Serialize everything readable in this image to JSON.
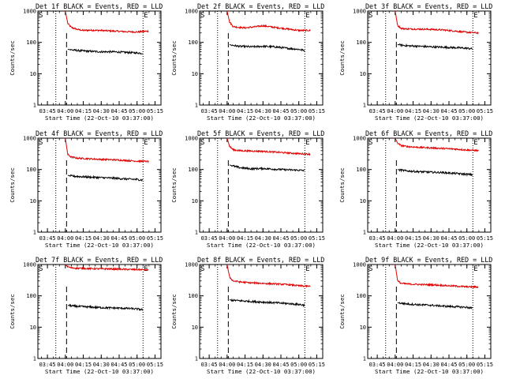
{
  "figure": {
    "panel_titles": [
      "Det 1f BLACK = Events, RED = LLD",
      "Det 2f BLACK = Events, RED = LLD",
      "Det 3f BLACK = Events, RED = LLD",
      "Det 4f BLACK = Events, RED = LLD",
      "Det 5f BLACK = Events, RED = LLD",
      "Det 6f BLACK = Events, RED = LLD",
      "Det 7f BLACK = Events, RED = LLD",
      "Det 8f BLACK = Events, RED = LLD",
      "Det 9f BLACK = Events, RED = LLD"
    ],
    "xlabel": "Start Time (22-Oct-10 03:37:00)",
    "ylabel": "Counts/sec",
    "start_marker": "S",
    "end_marker": "E",
    "colors": {
      "events": "#000000",
      "lld": "#e00000",
      "axes": "#000000"
    }
  },
  "chart_data": [
    {
      "type": "line",
      "title": "Det 1f BLACK = Events, RED = LLD",
      "xlabel": "Start Time (22-Oct-10 03:37:00)",
      "ylabel": "Counts/sec",
      "yscale": "log",
      "ylim": [
        1,
        1000
      ],
      "xlim": [
        "03:37",
        "05:20"
      ],
      "x_ticks": [
        "03:45",
        "04:00",
        "04:15",
        "04:30",
        "04:45",
        "05:00",
        "05:15"
      ],
      "y_ticks": [
        "1",
        "10",
        "100",
        "1000"
      ],
      "start_marker": "S",
      "end_marker": "E",
      "vlines": {
        "start_dotted": "03:52",
        "spike_dashed": "04:01",
        "end_dotted": "05:05"
      },
      "series": [
        {
          "name": "LLD",
          "color": "#e00000",
          "x": [
            "04:00",
            "04:02",
            "04:05",
            "04:10",
            "04:15",
            "04:20",
            "04:30",
            "04:40",
            "04:50",
            "05:00",
            "05:10"
          ],
          "y": [
            1000,
            400,
            300,
            260,
            240,
            245,
            240,
            230,
            220,
            215,
            230
          ]
        },
        {
          "name": "Events",
          "color": "#000000",
          "x": [
            "04:02",
            "04:05",
            "04:10",
            "04:20",
            "04:30",
            "04:40",
            "04:50",
            "05:00",
            "05:05"
          ],
          "y": [
            60,
            58,
            55,
            52,
            50,
            50,
            48,
            46,
            45
          ]
        }
      ]
    },
    {
      "type": "line",
      "title": "Det 2f BLACK = Events, RED = LLD",
      "xlabel": "Start Time (22-Oct-10 03:37:00)",
      "ylabel": "Counts/sec",
      "yscale": "log",
      "ylim": [
        1,
        1000
      ],
      "xlim": [
        "03:37",
        "05:20"
      ],
      "x_ticks": [
        "03:45",
        "04:00",
        "04:15",
        "04:30",
        "04:45",
        "05:00",
        "05:15"
      ],
      "y_ticks": [
        "1",
        "10",
        "100",
        "1000"
      ],
      "start_marker": "S",
      "end_marker": "E",
      "vlines": {
        "start_dotted": "03:52",
        "spike_dashed": "04:01",
        "end_dotted": "05:05"
      },
      "series": [
        {
          "name": "LLD",
          "color": "#e00000",
          "x": [
            "04:00",
            "04:02",
            "04:05",
            "04:10",
            "04:15",
            "04:25",
            "04:30",
            "04:40",
            "04:50",
            "05:00",
            "05:10"
          ],
          "y": [
            1000,
            450,
            320,
            300,
            290,
            320,
            340,
            300,
            270,
            240,
            240
          ]
        },
        {
          "name": "Events",
          "color": "#000000",
          "x": [
            "04:02",
            "04:05",
            "04:10",
            "04:20",
            "04:30",
            "04:40",
            "04:50",
            "05:00",
            "05:05"
          ],
          "y": [
            85,
            80,
            75,
            72,
            75,
            72,
            65,
            60,
            55
          ]
        }
      ]
    },
    {
      "type": "line",
      "title": "Det 3f BLACK = Events, RED = LLD",
      "xlabel": "Start Time (22-Oct-10 03:37:00)",
      "ylabel": "Counts/sec",
      "yscale": "log",
      "ylim": [
        1,
        1000
      ],
      "xlim": [
        "03:37",
        "05:20"
      ],
      "x_ticks": [
        "03:45",
        "04:00",
        "04:15",
        "04:30",
        "04:45",
        "05:00",
        "05:15"
      ],
      "y_ticks": [
        "1",
        "10",
        "100",
        "1000"
      ],
      "start_marker": "S",
      "end_marker": "E",
      "vlines": {
        "start_dotted": "03:52",
        "spike_dashed": "04:01",
        "end_dotted": "05:05"
      },
      "series": [
        {
          "name": "LLD",
          "color": "#e00000",
          "x": [
            "04:00",
            "04:02",
            "04:05",
            "04:10",
            "04:20",
            "04:30",
            "04:40",
            "04:50",
            "05:00",
            "05:10"
          ],
          "y": [
            1000,
            350,
            280,
            270,
            265,
            260,
            250,
            230,
            210,
            200
          ]
        },
        {
          "name": "Events",
          "color": "#000000",
          "x": [
            "04:02",
            "04:05",
            "04:10",
            "04:20",
            "04:30",
            "04:40",
            "04:50",
            "05:00",
            "05:05"
          ],
          "y": [
            85,
            82,
            78,
            75,
            72,
            70,
            68,
            65,
            62
          ]
        }
      ]
    },
    {
      "type": "line",
      "title": "Det 4f BLACK = Events, RED = LLD",
      "xlabel": "Start Time (22-Oct-10 03:37:00)",
      "ylabel": "Counts/sec",
      "yscale": "log",
      "ylim": [
        1,
        1000
      ],
      "xlim": [
        "03:37",
        "05:20"
      ],
      "x_ticks": [
        "03:45",
        "04:00",
        "04:15",
        "04:30",
        "04:45",
        "05:00",
        "05:15"
      ],
      "y_ticks": [
        "1",
        "10",
        "100",
        "1000"
      ],
      "start_marker": "S",
      "end_marker": "E",
      "vlines": {
        "start_dotted": "03:52",
        "spike_dashed": "04:01",
        "end_dotted": "05:05"
      },
      "series": [
        {
          "name": "LLD",
          "color": "#e00000",
          "x": [
            "04:00",
            "04:02",
            "04:05",
            "04:10",
            "04:20",
            "04:30",
            "04:40",
            "04:50",
            "05:00",
            "05:10"
          ],
          "y": [
            1000,
            300,
            250,
            230,
            220,
            210,
            205,
            195,
            185,
            180
          ]
        },
        {
          "name": "Events",
          "color": "#000000",
          "x": [
            "04:02",
            "04:05",
            "04:10",
            "04:20",
            "04:30",
            "04:40",
            "04:50",
            "05:00",
            "05:05"
          ],
          "y": [
            65,
            62,
            60,
            57,
            55,
            53,
            50,
            48,
            46
          ]
        }
      ]
    },
    {
      "type": "line",
      "title": "Det 5f BLACK = Events, RED = LLD",
      "xlabel": "Start Time (22-Oct-10 03:37:00)",
      "ylabel": "Counts/sec",
      "yscale": "log",
      "ylim": [
        1,
        1000
      ],
      "xlim": [
        "03:37",
        "05:20"
      ],
      "x_ticks": [
        "03:45",
        "04:00",
        "04:15",
        "04:30",
        "04:45",
        "05:00",
        "05:15"
      ],
      "y_ticks": [
        "1",
        "10",
        "100",
        "1000"
      ],
      "start_marker": "S",
      "end_marker": "E",
      "vlines": {
        "start_dotted": "03:52",
        "spike_dashed": "04:01",
        "end_dotted": "05:05"
      },
      "series": [
        {
          "name": "LLD",
          "color": "#e00000",
          "x": [
            "04:00",
            "04:02",
            "04:05",
            "04:10",
            "04:20",
            "04:30",
            "04:40",
            "04:50",
            "05:00",
            "05:10"
          ],
          "y": [
            1000,
            550,
            430,
            400,
            390,
            380,
            360,
            340,
            320,
            310
          ]
        },
        {
          "name": "Events",
          "color": "#000000",
          "x": [
            "04:02",
            "04:05",
            "04:10",
            "04:20",
            "04:30",
            "04:40",
            "04:50",
            "05:00",
            "05:05"
          ],
          "y": [
            140,
            130,
            115,
            105,
            108,
            102,
            98,
            95,
            92
          ]
        }
      ]
    },
    {
      "type": "line",
      "title": "Det 6f BLACK = Events, RED = LLD",
      "xlabel": "Start Time (22-Oct-10 03:37:00)",
      "ylabel": "Counts/sec",
      "yscale": "log",
      "ylim": [
        1,
        1000
      ],
      "xlim": [
        "03:37",
        "05:20"
      ],
      "x_ticks": [
        "03:45",
        "04:00",
        "04:15",
        "04:30",
        "04:45",
        "05:00",
        "05:15"
      ],
      "y_ticks": [
        "1",
        "10",
        "100",
        "1000"
      ],
      "start_marker": "S",
      "end_marker": "E",
      "vlines": {
        "start_dotted": "03:52",
        "spike_dashed": "04:01",
        "end_dotted": "05:05"
      },
      "series": [
        {
          "name": "LLD",
          "color": "#e00000",
          "x": [
            "04:00",
            "04:02",
            "04:05",
            "04:10",
            "04:20",
            "04:30",
            "04:40",
            "04:50",
            "05:00",
            "05:10"
          ],
          "y": [
            1000,
            700,
            580,
            540,
            510,
            490,
            470,
            450,
            420,
            400
          ]
        },
        {
          "name": "Events",
          "color": "#000000",
          "x": [
            "04:02",
            "04:05",
            "04:10",
            "04:20",
            "04:30",
            "04:40",
            "04:50",
            "05:00",
            "05:05"
          ],
          "y": [
            100,
            95,
            90,
            85,
            82,
            80,
            75,
            70,
            68
          ]
        }
      ]
    },
    {
      "type": "line",
      "title": "Det 7f BLACK = Events, RED = LLD",
      "xlabel": "Start Time (22-Oct-10 03:37:00)",
      "ylabel": "Counts/sec",
      "yscale": "log",
      "ylim": [
        1,
        1000
      ],
      "xlim": [
        "03:37",
        "05:20"
      ],
      "x_ticks": [
        "03:45",
        "04:00",
        "04:15",
        "04:30",
        "04:45",
        "05:00",
        "05:15"
      ],
      "y_ticks": [
        "1",
        "10",
        "100",
        "1000"
      ],
      "start_marker": "S",
      "end_marker": "E",
      "vlines": {
        "start_dotted": "03:52",
        "spike_dashed": "04:01",
        "end_dotted": "05:05"
      },
      "series": [
        {
          "name": "LLD",
          "color": "#e00000",
          "x": [
            "04:00",
            "04:02",
            "04:05",
            "04:10",
            "04:20",
            "04:30",
            "04:40",
            "04:50",
            "05:00",
            "05:10"
          ],
          "y": [
            1000,
            850,
            780,
            760,
            740,
            730,
            720,
            700,
            690,
            680
          ]
        },
        {
          "name": "Events",
          "color": "#000000",
          "x": [
            "04:02",
            "04:05",
            "04:10",
            "04:20",
            "04:30",
            "04:40",
            "04:50",
            "05:00",
            "05:05"
          ],
          "y": [
            50,
            48,
            46,
            44,
            42,
            41,
            40,
            38,
            36
          ]
        }
      ]
    },
    {
      "type": "line",
      "title": "Det 8f BLACK = Events, RED = LLD",
      "xlabel": "Start Time (22-Oct-10 03:37:00)",
      "ylabel": "Counts/sec",
      "yscale": "log",
      "ylim": [
        1,
        1000
      ],
      "xlim": [
        "03:37",
        "05:20"
      ],
      "x_ticks": [
        "03:45",
        "04:00",
        "04:15",
        "04:30",
        "04:45",
        "05:00",
        "05:15"
      ],
      "y_ticks": [
        "1",
        "10",
        "100",
        "1000"
      ],
      "start_marker": "S",
      "end_marker": "E",
      "vlines": {
        "start_dotted": "03:52",
        "spike_dashed": "04:01",
        "end_dotted": "05:05"
      },
      "series": [
        {
          "name": "LLD",
          "color": "#e00000",
          "x": [
            "04:00",
            "04:02",
            "04:05",
            "04:10",
            "04:20",
            "04:30",
            "04:40",
            "04:50",
            "05:00",
            "05:10"
          ],
          "y": [
            1000,
            400,
            300,
            280,
            260,
            250,
            240,
            230,
            210,
            200
          ]
        },
        {
          "name": "Events",
          "color": "#000000",
          "x": [
            "04:02",
            "04:05",
            "04:10",
            "04:20",
            "04:30",
            "04:40",
            "04:50",
            "05:00",
            "05:05"
          ],
          "y": [
            75,
            72,
            70,
            66,
            63,
            60,
            57,
            53,
            50
          ]
        }
      ]
    },
    {
      "type": "line",
      "title": "Det 9f BLACK = Events, RED = LLD",
      "xlabel": "Start Time (22-Oct-10 03:37:00)",
      "ylabel": "Counts/sec",
      "yscale": "log",
      "ylim": [
        1,
        1000
      ],
      "xlim": [
        "03:37",
        "05:20"
      ],
      "x_ticks": [
        "03:45",
        "04:00",
        "04:15",
        "04:30",
        "04:45",
        "05:00",
        "05:15"
      ],
      "y_ticks": [
        "1",
        "10",
        "100",
        "1000"
      ],
      "start_marker": "S",
      "end_marker": "E",
      "vlines": {
        "start_dotted": "03:52",
        "spike_dashed": "04:01",
        "end_dotted": "05:05"
      },
      "series": [
        {
          "name": "LLD",
          "color": "#e00000",
          "x": [
            "04:00",
            "04:02",
            "04:05",
            "04:10",
            "04:20",
            "04:30",
            "04:40",
            "04:50",
            "05:00",
            "05:10"
          ],
          "y": [
            1000,
            300,
            250,
            240,
            230,
            225,
            215,
            205,
            195,
            190
          ]
        },
        {
          "name": "Events",
          "color": "#000000",
          "x": [
            "04:02",
            "04:05",
            "04:10",
            "04:20",
            "04:30",
            "04:40",
            "04:50",
            "05:00",
            "05:05"
          ],
          "y": [
            60,
            58,
            55,
            52,
            50,
            47,
            45,
            43,
            40
          ]
        }
      ]
    }
  ]
}
